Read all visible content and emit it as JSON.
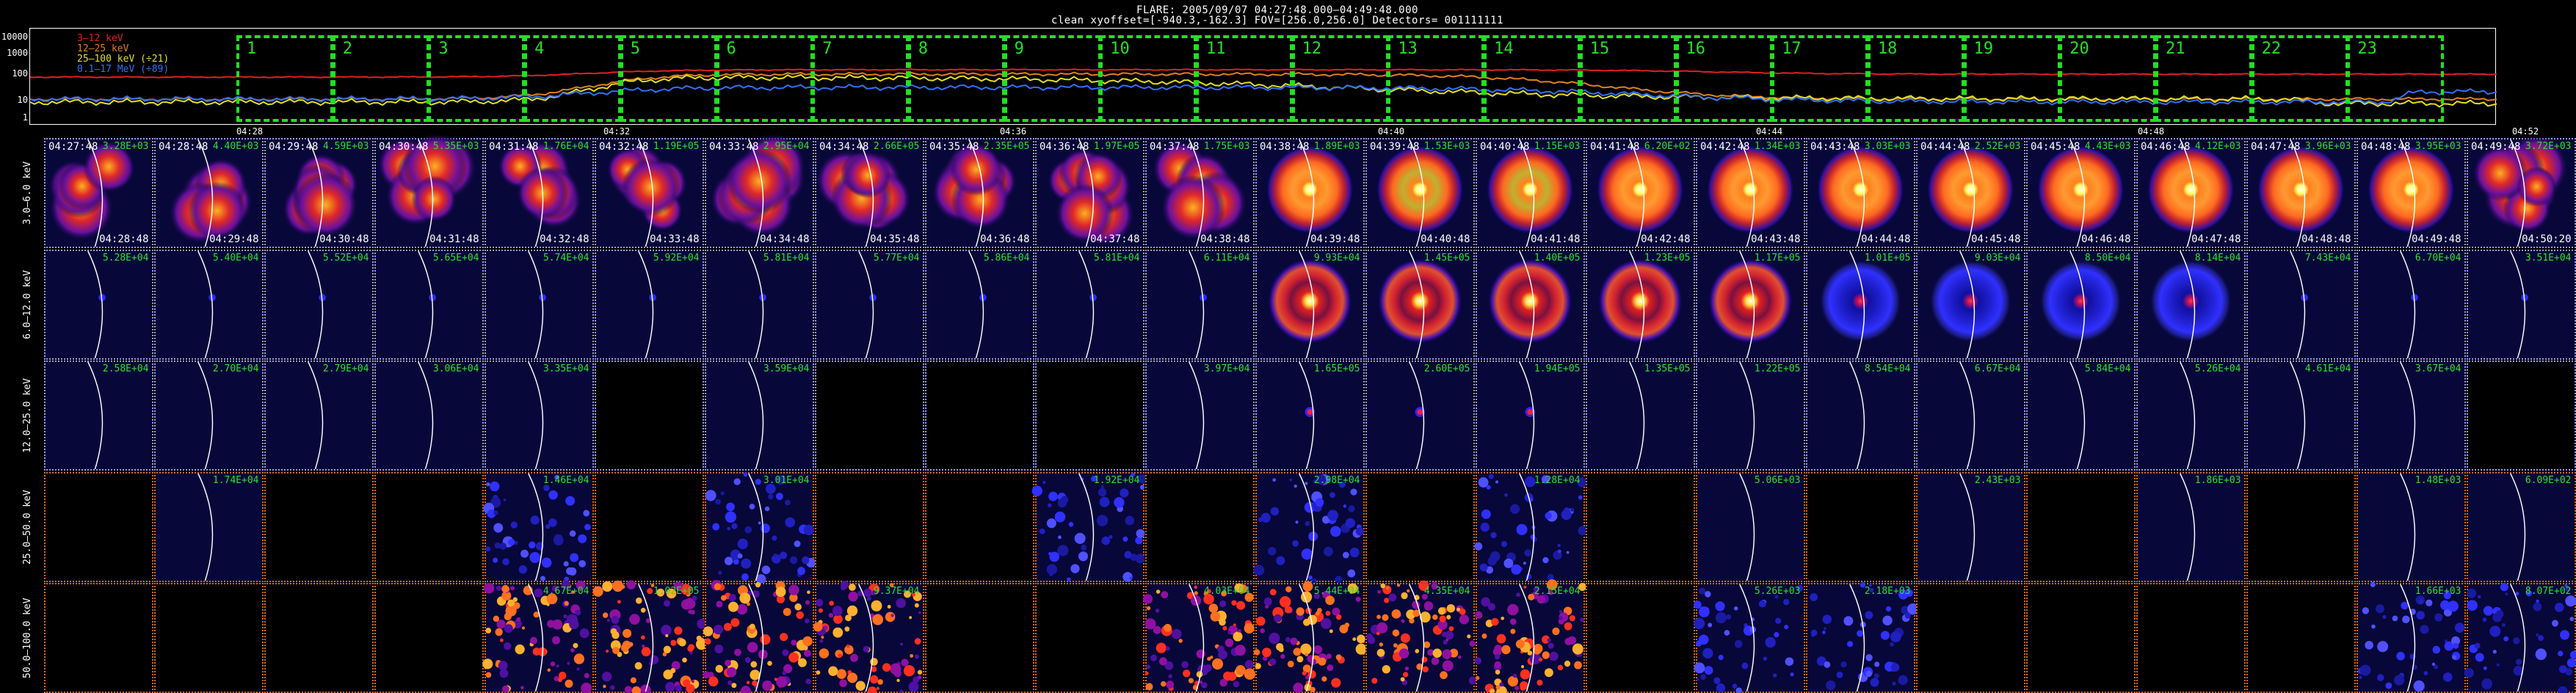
{
  "header": {
    "title_line1": "FLARE: 2005/09/07  04:27:48.000–04:49:48.000",
    "title_line2": "clean    xyoffset=[-940.3,-162.3]   FOV=[256.0,256.0]   Detectors= 001111111"
  },
  "lightcurve": {
    "y_ticks": [
      "10000",
      "1000",
      "100",
      "10",
      "1"
    ],
    "x_ticks": [
      "04:28",
      "04:32",
      "04:36",
      "04:40",
      "04:44",
      "04:48",
      "04:52"
    ],
    "legend": [
      {
        "label": "3–12 keV",
        "color": "#e02020"
      },
      {
        "label": "12–25 keV",
        "color": "#e08020"
      },
      {
        "label": "25–100 keV (÷21)",
        "color": "#e0e020"
      },
      {
        "label": "0.1–17 MeV (÷89)",
        "color": "#3070ff"
      }
    ],
    "intervals": [
      "1",
      "2",
      "3",
      "4",
      "5",
      "6",
      "7",
      "8",
      "9",
      "10",
      "11",
      "12",
      "13",
      "14",
      "15",
      "16",
      "17",
      "18",
      "19",
      "20",
      "21",
      "22",
      "23"
    ]
  },
  "rows": [
    {
      "label": "3.0–6.0 keV",
      "border": "blue",
      "cells": [
        {
          "flux": "3.28E+03",
          "start": "04:27:48",
          "end": "04:28:48",
          "kind": "blob"
        },
        {
          "flux": "4.40E+03",
          "start": "04:28:48",
          "end": "04:29:48",
          "kind": "blob"
        },
        {
          "flux": "4.59E+03",
          "start": "04:29:48",
          "end": "04:30:48",
          "kind": "blob"
        },
        {
          "flux": "5.35E+03",
          "start": "04:30:48",
          "end": "04:31:48",
          "kind": "blob"
        },
        {
          "flux": "1.76E+04",
          "start": "04:31:48",
          "end": "04:32:48",
          "kind": "blob"
        },
        {
          "flux": "1.19E+05",
          "start": "04:32:48",
          "end": "04:33:48",
          "kind": "blob"
        },
        {
          "flux": "2.95E+04",
          "start": "04:33:48",
          "end": "04:34:48",
          "kind": "blob"
        },
        {
          "flux": "2.66E+05",
          "start": "04:34:48",
          "end": "04:35:48",
          "kind": "blob"
        },
        {
          "flux": "2.35E+05",
          "start": "04:35:48",
          "end": "04:36:48",
          "kind": "blob"
        },
        {
          "flux": "1.97E+05",
          "start": "04:36:48",
          "end": "04:37:48",
          "kind": "blob"
        },
        {
          "flux": "1.75E+03",
          "start": "04:37:48",
          "end": "04:38:48",
          "kind": "blob"
        },
        {
          "flux": "1.89E+03",
          "start": "04:38:48",
          "end": "04:39:48",
          "kind": "ring"
        },
        {
          "flux": "1.53E+03",
          "start": "04:39:48",
          "end": "04:40:48",
          "kind": "ringy"
        },
        {
          "flux": "1.15E+03",
          "start": "04:40:48",
          "end": "04:41:48",
          "kind": "ringy"
        },
        {
          "flux": "6.20E+02",
          "start": "04:41:48",
          "end": "04:42:48",
          "kind": "ring"
        },
        {
          "flux": "1.34E+03",
          "start": "04:42:48",
          "end": "04:43:48",
          "kind": "ring"
        },
        {
          "flux": "3.03E+03",
          "start": "04:43:48",
          "end": "04:44:48",
          "kind": "ring"
        },
        {
          "flux": "2.52E+03",
          "start": "04:44:48",
          "end": "04:45:48",
          "kind": "ring"
        },
        {
          "flux": "4.43E+03",
          "start": "04:45:48",
          "end": "04:46:48",
          "kind": "ring"
        },
        {
          "flux": "4.12E+03",
          "start": "04:46:48",
          "end": "04:47:48",
          "kind": "ring"
        },
        {
          "flux": "3.96E+03",
          "start": "04:47:48",
          "end": "04:48:48",
          "kind": "ring"
        },
        {
          "flux": "3.95E+03",
          "start": "04:48:48",
          "end": "04:49:48",
          "kind": "ring"
        },
        {
          "flux": "3.72E+03",
          "start": "04:49:48",
          "end": "04:50:20",
          "kind": "blob"
        }
      ]
    },
    {
      "label": "6.0–12.0 keV",
      "border": "blue",
      "cells": [
        {
          "flux": "5.28E+04",
          "kind": "dot"
        },
        {
          "flux": "5.40E+04",
          "kind": "dot"
        },
        {
          "flux": "5.52E+04",
          "kind": "dot"
        },
        {
          "flux": "5.65E+04",
          "kind": "dot"
        },
        {
          "flux": "5.74E+04",
          "kind": "dot"
        },
        {
          "flux": "5.92E+04",
          "kind": "dot"
        },
        {
          "flux": "5.81E+04",
          "kind": "dot"
        },
        {
          "flux": "5.77E+04",
          "kind": "dot"
        },
        {
          "flux": "5.86E+04",
          "kind": "dot"
        },
        {
          "flux": "5.81E+04",
          "kind": "dot"
        },
        {
          "flux": "6.11E+04",
          "kind": "dot"
        },
        {
          "flux": "9.93E+04",
          "kind": "redring"
        },
        {
          "flux": "1.45E+05",
          "kind": "redring"
        },
        {
          "flux": "1.40E+05",
          "kind": "redring"
        },
        {
          "flux": "1.23E+05",
          "kind": "redring"
        },
        {
          "flux": "1.17E+05",
          "kind": "redring"
        },
        {
          "flux": "1.01E+05",
          "kind": "bluering"
        },
        {
          "flux": "9.03E+04",
          "kind": "bluering"
        },
        {
          "flux": "8.50E+04",
          "kind": "bluering"
        },
        {
          "flux": "8.14E+04",
          "kind": "bluering"
        },
        {
          "flux": "7.43E+04",
          "kind": "dot"
        },
        {
          "flux": "6.70E+04",
          "kind": "dot"
        },
        {
          "flux": "3.51E+04",
          "kind": "dot"
        }
      ]
    },
    {
      "label": "12.0–25.0 keV",
      "border": "blue",
      "cells": [
        {
          "flux": "2.58E+04",
          "kind": "empty"
        },
        {
          "flux": "2.70E+04",
          "kind": "empty"
        },
        {
          "flux": "2.79E+04",
          "kind": "empty"
        },
        {
          "flux": "3.06E+04",
          "kind": "empty"
        },
        {
          "flux": "3.35E+04",
          "kind": "empty"
        },
        {
          "flux": "",
          "kind": "black"
        },
        {
          "flux": "3.59E+04",
          "kind": "empty"
        },
        {
          "flux": "",
          "kind": "black"
        },
        {
          "flux": "",
          "kind": "black"
        },
        {
          "flux": "",
          "kind": "black"
        },
        {
          "flux": "3.97E+04",
          "kind": "empty"
        },
        {
          "flux": "1.65E+05",
          "kind": "reddot"
        },
        {
          "flux": "2.60E+05",
          "kind": "reddot"
        },
        {
          "flux": "1.94E+05",
          "kind": "reddot"
        },
        {
          "flux": "1.35E+05",
          "kind": "empty"
        },
        {
          "flux": "1.22E+05",
          "kind": "empty"
        },
        {
          "flux": "8.54E+04",
          "kind": "empty"
        },
        {
          "flux": "6.67E+04",
          "kind": "empty"
        },
        {
          "flux": "5.84E+04",
          "kind": "empty"
        },
        {
          "flux": "5.26E+04",
          "kind": "empty"
        },
        {
          "flux": "4.61E+04",
          "kind": "empty"
        },
        {
          "flux": "3.67E+04",
          "kind": "empty"
        },
        {
          "flux": "",
          "kind": "black"
        }
      ]
    },
    {
      "label": "25.0–50.0 keV",
      "border": "orange",
      "cells": [
        {
          "flux": "",
          "kind": "black"
        },
        {
          "flux": "1.74E+04",
          "kind": "empty"
        },
        {
          "flux": "",
          "kind": "black"
        },
        {
          "flux": "",
          "kind": "black"
        },
        {
          "flux": "1.46E+04",
          "kind": "speckle"
        },
        {
          "flux": "",
          "kind": "black"
        },
        {
          "flux": "3.01E+04",
          "kind": "speckle"
        },
        {
          "flux": "",
          "kind": "black"
        },
        {
          "flux": "",
          "kind": "black"
        },
        {
          "flux": "1.92E+04",
          "kind": "speckle"
        },
        {
          "flux": "",
          "kind": "black"
        },
        {
          "flux": "2.98E+04",
          "kind": "speckle"
        },
        {
          "flux": "",
          "kind": "black"
        },
        {
          "flux": "1.28E+04",
          "kind": "speckle"
        },
        {
          "flux": "",
          "kind": "black"
        },
        {
          "flux": "5.06E+03",
          "kind": "empty"
        },
        {
          "flux": "",
          "kind": "black"
        },
        {
          "flux": "2.43E+03",
          "kind": "empty"
        },
        {
          "flux": "",
          "kind": "black"
        },
        {
          "flux": "1.86E+03",
          "kind": "empty"
        },
        {
          "flux": "",
          "kind": "black"
        },
        {
          "flux": "1.48E+03",
          "kind": "empty"
        },
        {
          "flux": "6.09E+02",
          "kind": "empty"
        }
      ]
    },
    {
      "label": "50.0–100.0 keV",
      "border": "orange",
      "cells": [
        {
          "flux": "",
          "kind": "black"
        },
        {
          "flux": "",
          "kind": "black"
        },
        {
          "flux": "",
          "kind": "black"
        },
        {
          "flux": "",
          "kind": "black"
        },
        {
          "flux": "4.67E+04",
          "kind": "hotspeckle"
        },
        {
          "flux": "1.02E+05",
          "kind": "hotspeckle"
        },
        {
          "flux": "",
          "kind": "hotspeckle"
        },
        {
          "flux": "9.37E+04",
          "kind": "hotspeckle"
        },
        {
          "flux": "",
          "kind": "black"
        },
        {
          "flux": "",
          "kind": "black"
        },
        {
          "flux": "4.03E+04",
          "kind": "hotspeckle"
        },
        {
          "flux": "5.44E+04",
          "kind": "hotspeckle"
        },
        {
          "flux": "4.35E+04",
          "kind": "hotspeckle"
        },
        {
          "flux": "2.15E+04",
          "kind": "hotspeckle"
        },
        {
          "flux": "",
          "kind": "black"
        },
        {
          "flux": "5.26E+03",
          "kind": "bluespeckle"
        },
        {
          "flux": "2.18E+03",
          "kind": "bluespeckle"
        },
        {
          "flux": "",
          "kind": "black"
        },
        {
          "flux": "",
          "kind": "black"
        },
        {
          "flux": "",
          "kind": "black"
        },
        {
          "flux": "",
          "kind": "black"
        },
        {
          "flux": "1.66E+03",
          "kind": "bluespeckle"
        },
        {
          "flux": "8.07E+02",
          "kind": "bluespeckle"
        }
      ]
    }
  ]
}
